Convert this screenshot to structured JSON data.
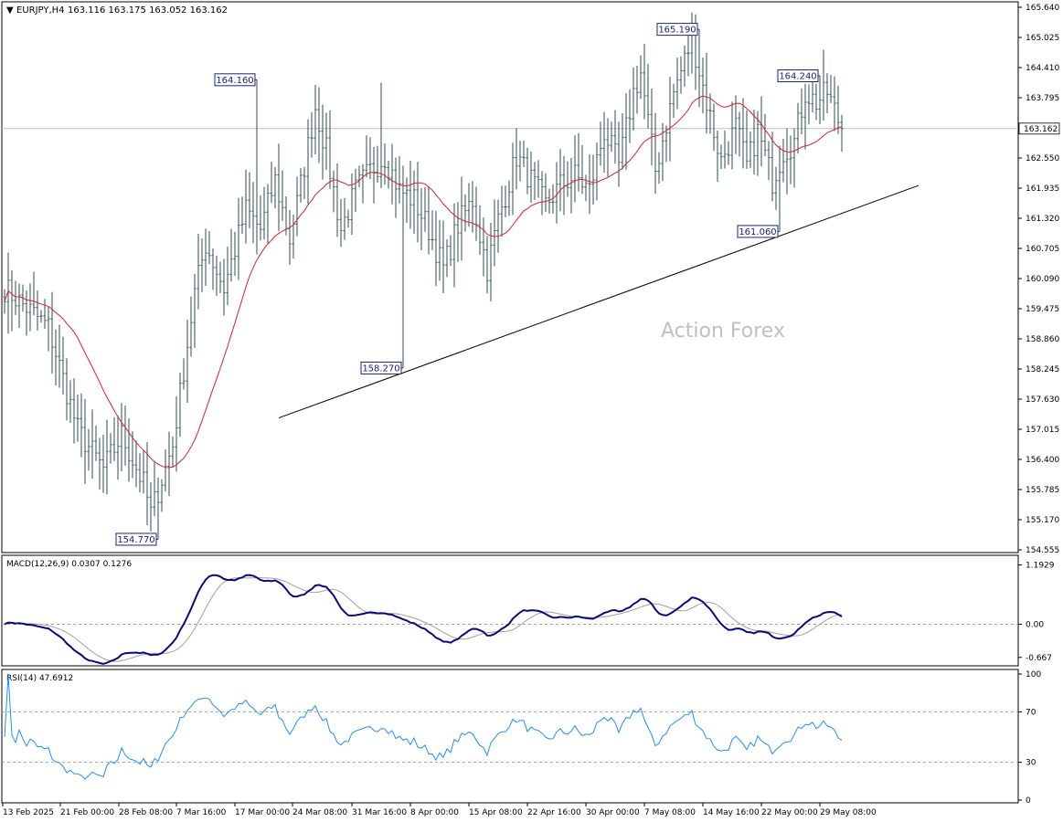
{
  "chart_data": [
    {
      "type": "ohlc",
      "symbol_header": "EURJPY,H4",
      "ohlc_header": "163.116 163.175 163.052 163.162",
      "watermark": "Action Forex",
      "colors": {
        "bars": "#2f4f4f",
        "ma": "#e0202a",
        "trendline": "#000000",
        "label_border": "#1a237e",
        "label_text": "#1a237e"
      },
      "ylim": [
        154.555,
        165.64
      ],
      "y_ticks": [
        "165.640",
        "165.025",
        "164.410",
        "163.795",
        "163.180",
        "162.550",
        "161.935",
        "161.320",
        "160.705",
        "160.090",
        "159.475",
        "158.860",
        "158.245",
        "157.630",
        "157.015",
        "156.400",
        "155.785",
        "155.170",
        "154.555"
      ],
      "current_price": "163.162",
      "x_ticks": [
        "13 Feb 2025",
        "21 Feb 00:00",
        "28 Feb 08:00",
        "7 Mar 16:00",
        "17 Mar 00:00",
        "24 Mar 08:00",
        "31 Mar 16:00",
        "8 Apr 00:00",
        "15 Apr 08:00",
        "22 Apr 16:00",
        "30 Apr 00:00",
        "7 May 08:00",
        "14 May 16:00",
        "22 May 00:00",
        "29 May 08:00"
      ],
      "bar_count": 230,
      "anchors": [
        {
          "i": 0,
          "p": 159.9
        },
        {
          "i": 12,
          "p": 159.1
        },
        {
          "i": 20,
          "p": 157.0
        },
        {
          "i": 27,
          "p": 156.2
        },
        {
          "i": 32,
          "p": 156.9
        },
        {
          "i": 38,
          "p": 155.9
        },
        {
          "i": 40,
          "p": 155.3
        },
        {
          "i": 46,
          "p": 156.7
        },
        {
          "i": 52,
          "p": 159.8
        },
        {
          "i": 55,
          "p": 160.8
        },
        {
          "i": 60,
          "p": 159.9
        },
        {
          "i": 66,
          "p": 161.5
        },
        {
          "i": 70,
          "p": 161.1
        },
        {
          "i": 74,
          "p": 162.1
        },
        {
          "i": 78,
          "p": 160.9
        },
        {
          "i": 81,
          "p": 162.0
        },
        {
          "i": 85,
          "p": 163.6
        },
        {
          "i": 88,
          "p": 162.7
        },
        {
          "i": 92,
          "p": 161.1
        },
        {
          "i": 96,
          "p": 161.9
        },
        {
          "i": 100,
          "p": 162.3
        },
        {
          "i": 104,
          "p": 162.6
        },
        {
          "i": 108,
          "p": 161.9
        },
        {
          "i": 112,
          "p": 161.7
        },
        {
          "i": 116,
          "p": 161.1
        },
        {
          "i": 120,
          "p": 160.3
        },
        {
          "i": 124,
          "p": 161.2
        },
        {
          "i": 128,
          "p": 161.7
        },
        {
          "i": 132,
          "p": 160.3
        },
        {
          "i": 135,
          "p": 161.3
        },
        {
          "i": 140,
          "p": 162.6
        },
        {
          "i": 144,
          "p": 162.1
        },
        {
          "i": 148,
          "p": 161.6
        },
        {
          "i": 152,
          "p": 162.0
        },
        {
          "i": 156,
          "p": 162.2
        },
        {
          "i": 160,
          "p": 161.9
        },
        {
          "i": 164,
          "p": 163.1
        },
        {
          "i": 168,
          "p": 162.4
        },
        {
          "i": 172,
          "p": 163.9
        },
        {
          "i": 174,
          "p": 164.3
        },
        {
          "i": 178,
          "p": 162.3
        },
        {
          "i": 183,
          "p": 163.9
        },
        {
          "i": 188,
          "p": 165.0
        },
        {
          "i": 192,
          "p": 163.7
        },
        {
          "i": 196,
          "p": 162.5
        },
        {
          "i": 200,
          "p": 163.2
        },
        {
          "i": 203,
          "p": 162.4
        },
        {
          "i": 206,
          "p": 163.1
        },
        {
          "i": 210,
          "p": 162.1
        },
        {
          "i": 213,
          "p": 162.7
        },
        {
          "i": 216,
          "p": 162.9
        },
        {
          "i": 219,
          "p": 163.9
        },
        {
          "i": 222,
          "p": 163.7
        },
        {
          "i": 225,
          "p": 163.9
        },
        {
          "i": 229,
          "p": 163.16
        }
      ],
      "special_bars": [
        {
          "i": 42,
          "low": 154.77
        },
        {
          "i": 69,
          "high": 164.16
        },
        {
          "i": 103,
          "high": 164.1
        },
        {
          "i": 109,
          "low": 158.27
        },
        {
          "i": 190,
          "high": 165.19
        },
        {
          "i": 212,
          "low": 161.06
        },
        {
          "i": 223,
          "high": 164.24
        }
      ],
      "annotations": [
        {
          "text": "164.160",
          "price": 164.16,
          "bar": 69
        },
        {
          "text": "165.190",
          "price": 165.19,
          "bar": 190
        },
        {
          "text": "164.240",
          "price": 164.24,
          "bar": 223
        },
        {
          "text": "161.060",
          "price": 161.06,
          "bar": 212
        },
        {
          "text": "158.270",
          "price": 158.27,
          "bar": 109
        },
        {
          "text": "154.770",
          "price": 154.77,
          "bar": 42
        }
      ],
      "trendline": {
        "from": {
          "bar": 75,
          "price": 157.25
        },
        "to": {
          "bar": 250,
          "price": 162.0
        }
      },
      "ma_period": 20
    },
    {
      "type": "line",
      "indicator": "MACD(12,26,9) 0.0307 0.1276",
      "colors": {
        "macd": "#0a0a80",
        "signal": "#a0a0a0",
        "zero": "#a0a0a0"
      },
      "ylim": [
        -0.8,
        1.35
      ],
      "y_ticks": [
        {
          "label": "1.1929",
          "value": 1.1929
        },
        {
          "label": "0.00",
          "value": 0.0
        },
        {
          "label": "-0.667",
          "value": -0.667
        }
      ],
      "current_value": "0.0307"
    },
    {
      "type": "line",
      "indicator": "RSI(14) 47.6912",
      "colors": {
        "rsi": "#1e90ff",
        "levels": "#a0a0a0"
      },
      "ylim": [
        0,
        100
      ],
      "y_ticks": [
        "100",
        "70",
        "30",
        "0"
      ],
      "levels": [
        70,
        30
      ]
    }
  ]
}
